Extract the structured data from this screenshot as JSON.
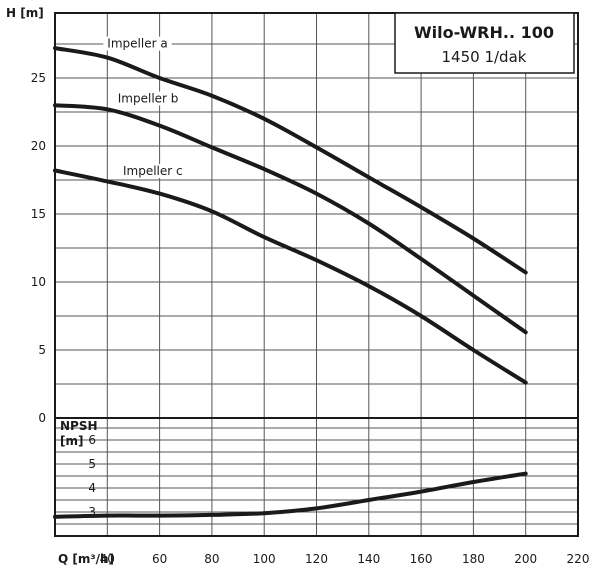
{
  "chart_data": [
    {
      "type": "line",
      "title": "Wilo-WRH.. 100",
      "subtitle": "1450 1/dak",
      "ylabel": "H [m]",
      "xlabel": "Q [m³/h]",
      "xlim": [
        20,
        220
      ],
      "ylim": [
        0,
        29
      ],
      "x_ticks": [
        40,
        60,
        80,
        100,
        120,
        140,
        160,
        180,
        200,
        220
      ],
      "y_ticks": [
        0,
        5,
        10,
        15,
        20,
        25
      ],
      "grid": true,
      "series": [
        {
          "name": "Impeller a",
          "points": [
            [
              20,
              27.2
            ],
            [
              40,
              26.5
            ],
            [
              60,
              25.0
            ],
            [
              80,
              23.7
            ],
            [
              100,
              22.0
            ],
            [
              120,
              19.9
            ],
            [
              140,
              17.7
            ],
            [
              160,
              15.5
            ],
            [
              180,
              13.2
            ],
            [
              200,
              10.7
            ]
          ]
        },
        {
          "name": "Impeller b",
          "points": [
            [
              20,
              23.0
            ],
            [
              40,
              22.7
            ],
            [
              60,
              21.5
            ],
            [
              80,
              19.9
            ],
            [
              100,
              18.3
            ],
            [
              120,
              16.5
            ],
            [
              140,
              14.3
            ],
            [
              160,
              11.7
            ],
            [
              180,
              9.0
            ],
            [
              200,
              6.3
            ]
          ]
        },
        {
          "name": "Impeller c",
          "points": [
            [
              20,
              18.2
            ],
            [
              40,
              17.4
            ],
            [
              60,
              16.5
            ],
            [
              80,
              15.2
            ],
            [
              100,
              13.3
            ],
            [
              120,
              11.6
            ],
            [
              140,
              9.7
            ],
            [
              160,
              7.5
            ],
            [
              180,
              5.0
            ],
            [
              200,
              2.6
            ]
          ]
        }
      ]
    },
    {
      "type": "line",
      "ylabel": "NPSH [m]",
      "xlim": [
        20,
        220
      ],
      "ylim": [
        2.3,
        6.8
      ],
      "y_ticks": [
        3,
        4,
        5,
        6
      ],
      "grid": true,
      "series": [
        {
          "name": "",
          "points": [
            [
              20,
              2.8
            ],
            [
              40,
              2.85
            ],
            [
              60,
              2.85
            ],
            [
              80,
              2.88
            ],
            [
              100,
              2.95
            ],
            [
              120,
              3.15
            ],
            [
              140,
              3.5
            ],
            [
              160,
              3.85
            ],
            [
              180,
              4.25
            ],
            [
              200,
              4.6
            ]
          ]
        }
      ]
    }
  ]
}
